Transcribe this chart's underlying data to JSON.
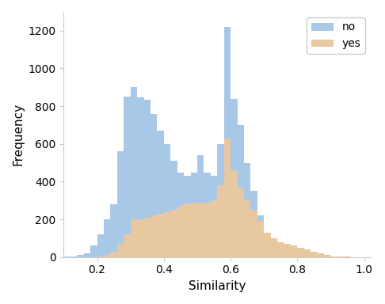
{
  "xlabel": "Similarity",
  "ylabel": "Frequency",
  "xlim": [
    0.1,
    1.02
  ],
  "ylim": [
    0,
    1300
  ],
  "bins_left": [
    0.1,
    0.12,
    0.14,
    0.16,
    0.18,
    0.2,
    0.22,
    0.24,
    0.26,
    0.28,
    0.3,
    0.32,
    0.34,
    0.36,
    0.38,
    0.4,
    0.42,
    0.44,
    0.46,
    0.48,
    0.5,
    0.52,
    0.54,
    0.56,
    0.58,
    0.6,
    0.62,
    0.64,
    0.66,
    0.68,
    0.7,
    0.72,
    0.74,
    0.76,
    0.78,
    0.8,
    0.82,
    0.84,
    0.86,
    0.88,
    0.9,
    0.92,
    0.94,
    0.96,
    0.98
  ],
  "no_counts": [
    2,
    5,
    10,
    20,
    60,
    120,
    200,
    280,
    560,
    850,
    900,
    845,
    835,
    760,
    670,
    600,
    510,
    450,
    430,
    450,
    540,
    450,
    430,
    600,
    1220,
    840,
    700,
    500,
    350,
    220,
    130,
    90,
    65,
    50,
    35,
    25,
    15,
    10,
    6,
    4,
    2,
    1,
    1,
    0,
    0
  ],
  "yes_counts": [
    0,
    0,
    0,
    0,
    0,
    5,
    10,
    30,
    70,
    120,
    200,
    200,
    210,
    220,
    230,
    240,
    250,
    270,
    285,
    290,
    290,
    290,
    300,
    380,
    630,
    460,
    370,
    300,
    250,
    190,
    130,
    100,
    80,
    70,
    60,
    50,
    40,
    30,
    20,
    10,
    5,
    2,
    1,
    0,
    0
  ],
  "no_color": "#a8c8e8",
  "yes_color": "#e8c8a0",
  "no_alpha": 1.0,
  "yes_alpha": 1.0,
  "legend_labels": [
    "no",
    "yes"
  ],
  "xticks": [
    0.2,
    0.4,
    0.6,
    0.8,
    1.0
  ],
  "yticks": [
    0,
    200,
    400,
    600,
    800,
    1000,
    1200
  ],
  "background_color": "#ffffff",
  "spine_color": "#cccccc",
  "bin_width": 0.02
}
